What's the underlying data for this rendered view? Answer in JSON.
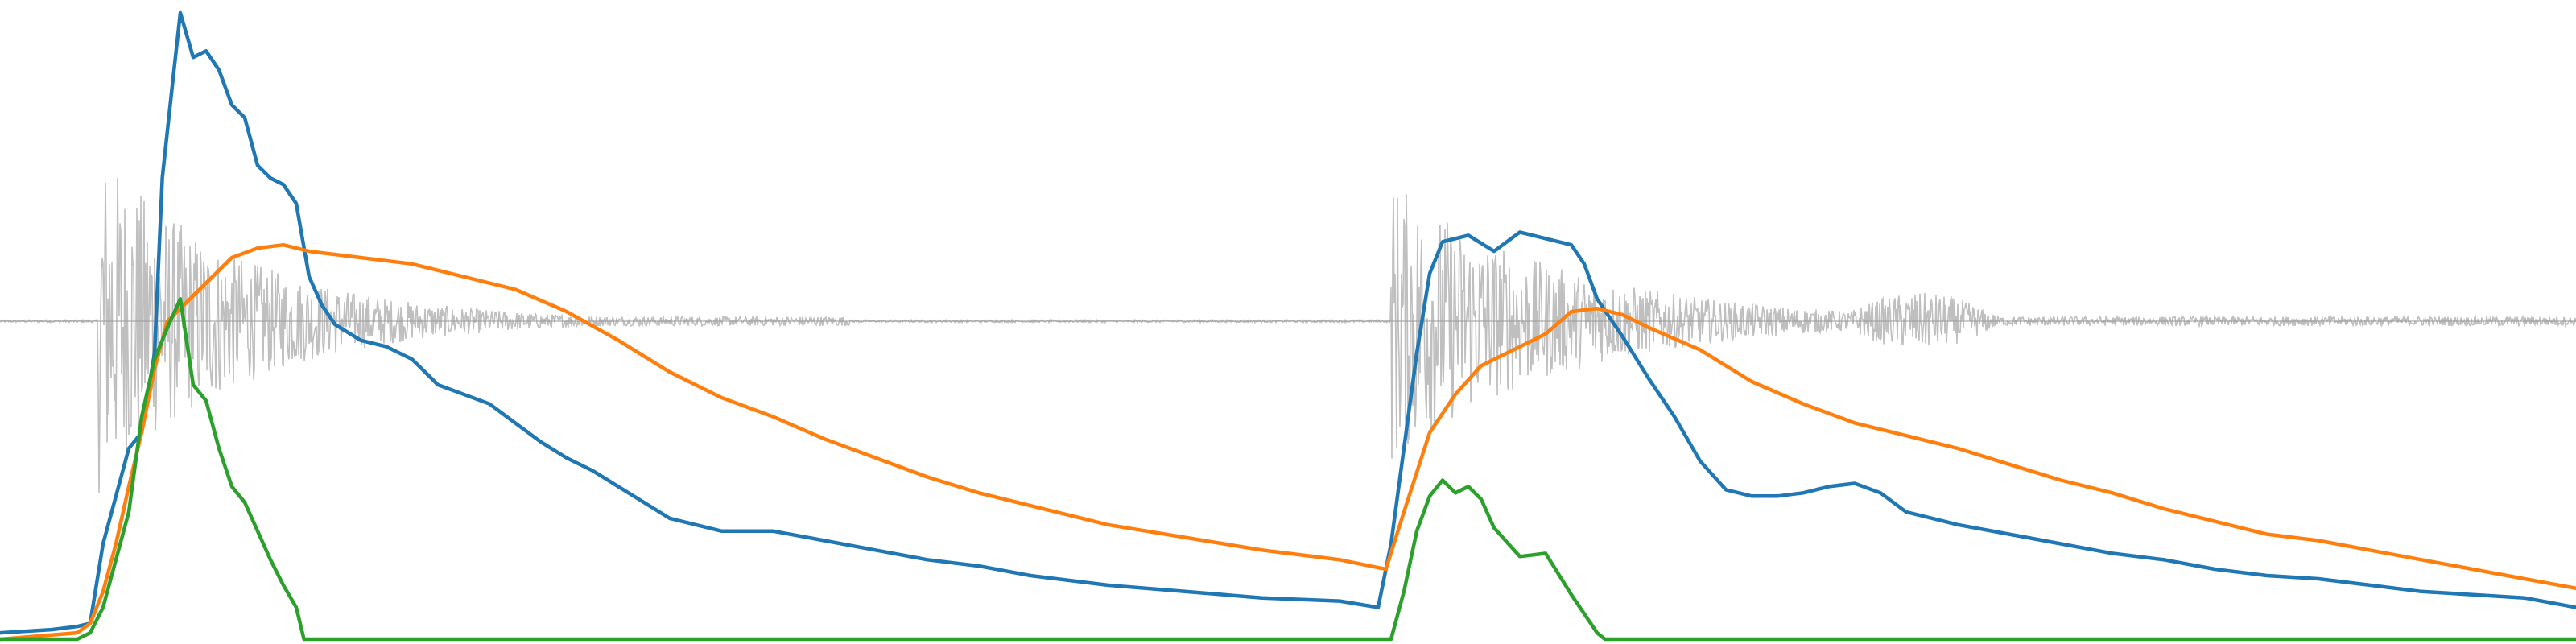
{
  "chart_data": {
    "type": "line",
    "title": "",
    "xlabel": "",
    "ylabel": "",
    "grid": false,
    "legend": "none",
    "xlim": [
      0,
      100
    ],
    "ylim": [
      -1,
      1
    ],
    "waveform": {
      "color": "#bfbfbf",
      "bursts": [
        {
          "start": 3.8,
          "end": 33,
          "peak": 0.55,
          "decay": 0.06
        },
        {
          "start": 54.0,
          "end": 100,
          "peak": 0.45,
          "decay": 0.05
        },
        {
          "start": 71,
          "end": 78,
          "peak": 0.09,
          "decay": 0.0
        }
      ]
    },
    "series": [
      {
        "color": "#1f77b4",
        "points": [
          [
            0,
            -0.98
          ],
          [
            2,
            -0.97
          ],
          [
            3,
            -0.96
          ],
          [
            3.5,
            -0.95
          ],
          [
            4,
            -0.7
          ],
          [
            4.5,
            -0.55
          ],
          [
            5,
            -0.4
          ],
          [
            5.5,
            -0.35
          ],
          [
            6,
            -0.1
          ],
          [
            6.3,
            0.45
          ],
          [
            6.7,
            0.75
          ],
          [
            7,
            0.97
          ],
          [
            7.5,
            0.83
          ],
          [
            8,
            0.85
          ],
          [
            8.5,
            0.79
          ],
          [
            9,
            0.68
          ],
          [
            9.5,
            0.64
          ],
          [
            10,
            0.49
          ],
          [
            10.5,
            0.45
          ],
          [
            11,
            0.43
          ],
          [
            11.5,
            0.37
          ],
          [
            12,
            0.14
          ],
          [
            12.5,
            0.05
          ],
          [
            13,
            -0.01
          ],
          [
            14,
            -0.06
          ],
          [
            15,
            -0.08
          ],
          [
            16,
            -0.12
          ],
          [
            17,
            -0.2
          ],
          [
            18,
            -0.23
          ],
          [
            19,
            -0.26
          ],
          [
            20,
            -0.32
          ],
          [
            21,
            -0.38
          ],
          [
            22,
            -0.43
          ],
          [
            23,
            -0.47
          ],
          [
            24,
            -0.52
          ],
          [
            26,
            -0.62
          ],
          [
            28,
            -0.66
          ],
          [
            30,
            -0.66
          ],
          [
            32,
            -0.69
          ],
          [
            34,
            -0.72
          ],
          [
            36,
            -0.75
          ],
          [
            38,
            -0.77
          ],
          [
            40,
            -0.8
          ],
          [
            43,
            -0.83
          ],
          [
            46,
            -0.85
          ],
          [
            49,
            -0.87
          ],
          [
            52,
            -0.88
          ],
          [
            53.5,
            -0.9
          ],
          [
            54,
            -0.7
          ],
          [
            54.5,
            -0.4
          ],
          [
            55,
            -0.1
          ],
          [
            55.5,
            0.15
          ],
          [
            56,
            0.25
          ],
          [
            57,
            0.27
          ],
          [
            58,
            0.22
          ],
          [
            59,
            0.28
          ],
          [
            60,
            0.26
          ],
          [
            61,
            0.24
          ],
          [
            61.5,
            0.18
          ],
          [
            62,
            0.07
          ],
          [
            63,
            -0.05
          ],
          [
            64,
            -0.18
          ],
          [
            65,
            -0.3
          ],
          [
            66,
            -0.44
          ],
          [
            67,
            -0.53
          ],
          [
            68,
            -0.55
          ],
          [
            69,
            -0.55
          ],
          [
            70,
            -0.54
          ],
          [
            71,
            -0.52
          ],
          [
            72,
            -0.51
          ],
          [
            73,
            -0.54
          ],
          [
            74,
            -0.6
          ],
          [
            76,
            -0.64
          ],
          [
            78,
            -0.67
          ],
          [
            80,
            -0.7
          ],
          [
            82,
            -0.73
          ],
          [
            84,
            -0.75
          ],
          [
            86,
            -0.78
          ],
          [
            88,
            -0.8
          ],
          [
            90,
            -0.81
          ],
          [
            92,
            -0.83
          ],
          [
            94,
            -0.85
          ],
          [
            96,
            -0.86
          ],
          [
            98,
            -0.87
          ],
          [
            100,
            -0.9
          ]
        ]
      },
      {
        "color": "#ff7f0e",
        "points": [
          [
            0,
            -1
          ],
          [
            3,
            -0.98
          ],
          [
            3.5,
            -0.95
          ],
          [
            4,
            -0.85
          ],
          [
            4.5,
            -0.7
          ],
          [
            5,
            -0.52
          ],
          [
            5.5,
            -0.35
          ],
          [
            6,
            -0.15
          ],
          [
            6.5,
            0.0
          ],
          [
            7,
            0.04
          ],
          [
            8,
            0.12
          ],
          [
            9,
            0.2
          ],
          [
            10,
            0.23
          ],
          [
            11,
            0.24
          ],
          [
            12,
            0.22
          ],
          [
            14,
            0.2
          ],
          [
            16,
            0.18
          ],
          [
            18,
            0.14
          ],
          [
            20,
            0.1
          ],
          [
            22,
            0.03
          ],
          [
            24,
            -0.06
          ],
          [
            26,
            -0.16
          ],
          [
            28,
            -0.24
          ],
          [
            30,
            -0.3
          ],
          [
            32,
            -0.37
          ],
          [
            34,
            -0.43
          ],
          [
            36,
            -0.49
          ],
          [
            38,
            -0.54
          ],
          [
            40,
            -0.58
          ],
          [
            43,
            -0.64
          ],
          [
            46,
            -0.68
          ],
          [
            49,
            -0.72
          ],
          [
            52,
            -0.75
          ],
          [
            53.8,
            -0.78
          ],
          [
            54.5,
            -0.6
          ],
          [
            55.5,
            -0.35
          ],
          [
            56.5,
            -0.23
          ],
          [
            57.5,
            -0.14
          ],
          [
            59,
            -0.08
          ],
          [
            60,
            -0.04
          ],
          [
            61,
            0.03
          ],
          [
            62,
            0.04
          ],
          [
            63,
            0.02
          ],
          [
            64,
            -0.02
          ],
          [
            66,
            -0.09
          ],
          [
            68,
            -0.19
          ],
          [
            70,
            -0.26
          ],
          [
            72,
            -0.32
          ],
          [
            74,
            -0.36
          ],
          [
            76,
            -0.4
          ],
          [
            78,
            -0.45
          ],
          [
            80,
            -0.5
          ],
          [
            82,
            -0.54
          ],
          [
            84,
            -0.59
          ],
          [
            86,
            -0.63
          ],
          [
            88,
            -0.67
          ],
          [
            90,
            -0.69
          ],
          [
            92,
            -0.72
          ],
          [
            94,
            -0.75
          ],
          [
            96,
            -0.78
          ],
          [
            98,
            -0.81
          ],
          [
            100,
            -0.84
          ]
        ]
      },
      {
        "color": "#2ca02c",
        "points": [
          [
            0,
            -1
          ],
          [
            3,
            -1
          ],
          [
            3.5,
            -0.98
          ],
          [
            4,
            -0.9
          ],
          [
            4.5,
            -0.75
          ],
          [
            5,
            -0.6
          ],
          [
            5.5,
            -0.3
          ],
          [
            6,
            -0.12
          ],
          [
            6.5,
            -0.02
          ],
          [
            7,
            0.07
          ],
          [
            7.5,
            -0.2
          ],
          [
            8,
            -0.25
          ],
          [
            8.5,
            -0.4
          ],
          [
            9,
            -0.52
          ],
          [
            9.5,
            -0.57
          ],
          [
            10,
            -0.66
          ],
          [
            10.5,
            -0.75
          ],
          [
            11,
            -0.83
          ],
          [
            11.5,
            -0.9
          ],
          [
            11.8,
            -1
          ],
          [
            54,
            -1
          ],
          [
            54.5,
            -0.85
          ],
          [
            55,
            -0.66
          ],
          [
            55.5,
            -0.55
          ],
          [
            56,
            -0.5
          ],
          [
            56.5,
            -0.54
          ],
          [
            57,
            -0.52
          ],
          [
            57.5,
            -0.56
          ],
          [
            58,
            -0.65
          ],
          [
            59,
            -0.74
          ],
          [
            60,
            -0.73
          ],
          [
            61,
            -0.86
          ],
          [
            62,
            -0.98
          ],
          [
            62.3,
            -1
          ],
          [
            100,
            -1
          ]
        ]
      }
    ]
  }
}
